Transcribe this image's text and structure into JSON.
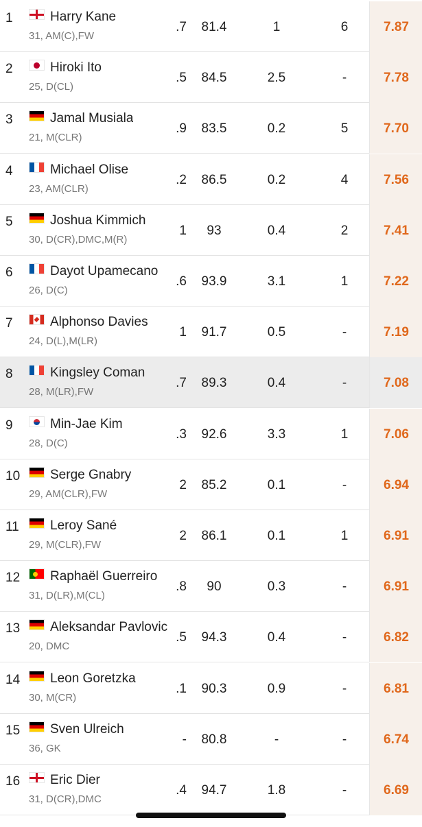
{
  "rating_color": "#e0681c",
  "players": [
    {
      "rank": "1",
      "flag": "flag-england-icon",
      "flag_class": "fl-eng",
      "name": "Harry Kane",
      "info": "31, AM(C),FW",
      "c1": ".7",
      "c2": "81.4",
      "c3": "1",
      "c4": "6",
      "rating": "7.87"
    },
    {
      "rank": "2",
      "flag": "flag-japan-icon",
      "flag_class": "fl-jpn",
      "name": "Hiroki Ito",
      "info": "25, D(CL)",
      "c1": ".5",
      "c2": "84.5",
      "c3": "2.5",
      "c4": "-",
      "rating": "7.78"
    },
    {
      "rank": "3",
      "flag": "flag-germany-icon",
      "flag_class": "fl-ger",
      "name": "Jamal Musiala",
      "info": "21, M(CLR)",
      "c1": ".9",
      "c2": "83.5",
      "c3": "0.2",
      "c4": "5",
      "rating": "7.70"
    },
    {
      "rank": "4",
      "flag": "flag-france-icon",
      "flag_class": "fl-fra",
      "name": "Michael Olise",
      "info": "23, AM(CLR)",
      "c1": ".2",
      "c2": "86.5",
      "c3": "0.2",
      "c4": "4",
      "rating": "7.56"
    },
    {
      "rank": "5",
      "flag": "flag-germany-icon",
      "flag_class": "fl-ger",
      "name": "Joshua Kimmich",
      "info": "30, D(CR),DMC,M(R)",
      "c1": "1",
      "c2": "93",
      "c3": "0.4",
      "c4": "2",
      "rating": "7.41"
    },
    {
      "rank": "6",
      "flag": "flag-france-icon",
      "flag_class": "fl-fra",
      "name": "Dayot Upamecano",
      "info": "26, D(C)",
      "c1": ".6",
      "c2": "93.9",
      "c3": "3.1",
      "c4": "1",
      "rating": "7.22"
    },
    {
      "rank": "7",
      "flag": "flag-canada-icon",
      "flag_class": "fl-can",
      "name": "Alphonso Davies",
      "info": "24, D(L),M(LR)",
      "c1": "1",
      "c2": "91.7",
      "c3": "0.5",
      "c4": "-",
      "rating": "7.19"
    },
    {
      "rank": "8",
      "flag": "flag-france-icon",
      "flag_class": "fl-fra",
      "name": "Kingsley Coman",
      "info": "28, M(LR),FW",
      "c1": ".7",
      "c2": "89.3",
      "c3": "0.4",
      "c4": "-",
      "rating": "7.08",
      "highlight": true
    },
    {
      "rank": "9",
      "flag": "flag-south-korea-icon",
      "flag_class": "fl-kor",
      "name": "Min-Jae Kim",
      "info": "28, D(C)",
      "c1": ".3",
      "c2": "92.6",
      "c3": "3.3",
      "c4": "1",
      "rating": "7.06"
    },
    {
      "rank": "10",
      "flag": "flag-germany-icon",
      "flag_class": "fl-ger",
      "name": "Serge Gnabry",
      "info": "29, AM(CLR),FW",
      "c1": "2",
      "c2": "85.2",
      "c3": "0.1",
      "c4": "-",
      "rating": "6.94"
    },
    {
      "rank": "11",
      "flag": "flag-germany-icon",
      "flag_class": "fl-ger",
      "name": "Leroy Sané",
      "info": "29, M(CLR),FW",
      "c1": "2",
      "c2": "86.1",
      "c3": "0.1",
      "c4": "1",
      "rating": "6.91"
    },
    {
      "rank": "12",
      "flag": "flag-portugal-icon",
      "flag_class": "fl-por",
      "name": "Raphaël Guerreiro",
      "info": "31, D(LR),M(CL)",
      "c1": ".8",
      "c2": "90",
      "c3": "0.3",
      "c4": "-",
      "rating": "6.91"
    },
    {
      "rank": "13",
      "flag": "flag-germany-icon",
      "flag_class": "fl-ger",
      "name": "Aleksandar Pavlovic",
      "info": "20, DMC",
      "c1": ".5",
      "c2": "94.3",
      "c3": "0.4",
      "c4": "-",
      "rating": "6.82"
    },
    {
      "rank": "14",
      "flag": "flag-germany-icon",
      "flag_class": "fl-ger",
      "name": "Leon Goretzka",
      "info": "30, M(CR)",
      "c1": ".1",
      "c2": "90.3",
      "c3": "0.9",
      "c4": "-",
      "rating": "6.81"
    },
    {
      "rank": "15",
      "flag": "flag-germany-icon",
      "flag_class": "fl-ger",
      "name": "Sven Ulreich",
      "info": "36, GK",
      "c1": "-",
      "c2": "80.8",
      "c3": "-",
      "c4": "-",
      "rating": "6.74"
    },
    {
      "rank": "16",
      "flag": "flag-england-icon",
      "flag_class": "fl-eng",
      "name": "Eric Dier",
      "info": "31, D(CR),DMC",
      "c1": ".4",
      "c2": "94.7",
      "c3": "1.8",
      "c4": "-",
      "rating": "6.69"
    }
  ]
}
